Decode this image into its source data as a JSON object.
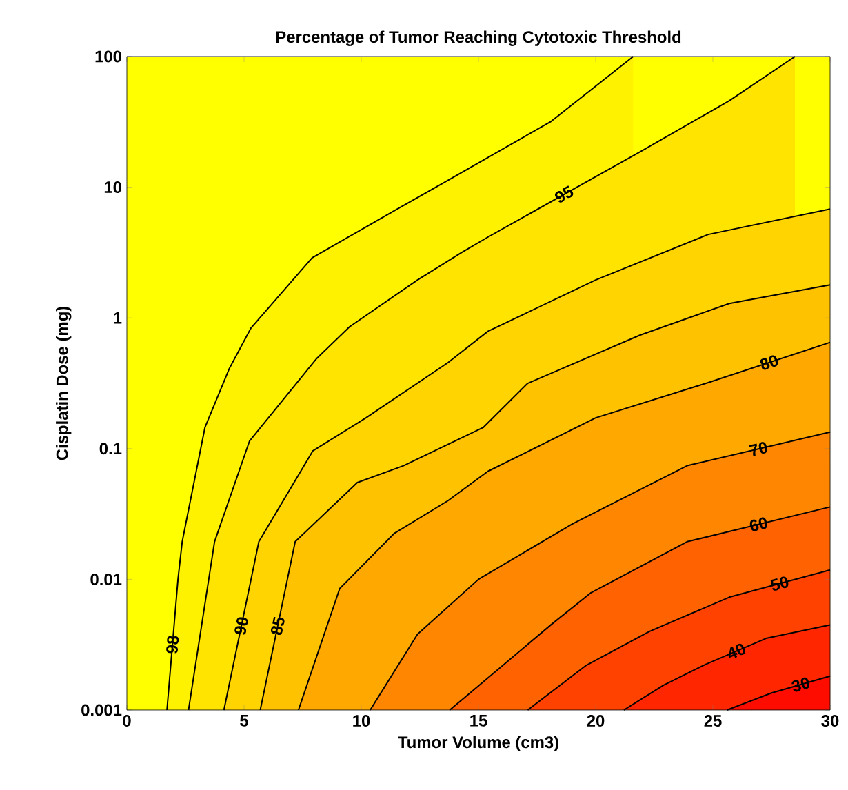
{
  "chart_data": {
    "type": "area",
    "title": "Percentage of Tumor Reaching Cytotoxic Threshold",
    "xlabel": "Tumor Volume (cm3)",
    "ylabel": "Cisplatin Dose (mg)",
    "log": "y",
    "xlim": [
      0,
      30
    ],
    "ylim": [
      0.001,
      100
    ],
    "xticks": [
      0,
      5,
      10,
      15,
      20,
      25,
      30
    ],
    "yticks": [
      0.001,
      0.01,
      0.1,
      1,
      10,
      100
    ],
    "bands": [
      {
        "axis": "y",
        "from": 0.001,
        "to": 100,
        "color": "#ffff00"
      }
    ],
    "series": [
      {
        "name": "98",
        "color": "#fff200",
        "x": [
          1.71,
          2.18,
          2.36,
          3.33,
          4.37,
          5.3,
          7.9,
          11.4,
          14.3,
          18.1,
          21.6
        ],
        "values": [
          0.001,
          0.01,
          0.0194,
          0.145,
          0.41,
          0.84,
          2.88,
          6.6,
          13,
          31.9,
          100
        ]
      },
      {
        "name": "95",
        "color": "#ffe400",
        "x": [
          2.63,
          3.74,
          5.23,
          8.1,
          9.5,
          12.4,
          14.3,
          15.4,
          21.9,
          25.7,
          28.5
        ],
        "values": [
          0.001,
          0.0194,
          0.114,
          0.49,
          0.855,
          1.95,
          3.18,
          4.15,
          18.7,
          45.9,
          100
        ]
      },
      {
        "name": "90",
        "color": "#ffd400",
        "x": [
          4.14,
          5.63,
          7.93,
          10.2,
          13.7,
          15.4,
          20.0,
          24.8,
          30
        ],
        "values": [
          0.001,
          0.0194,
          0.096,
          0.172,
          0.455,
          0.79,
          1.95,
          4.35,
          6.8
        ]
      },
      {
        "name": "85",
        "color": "#ffc200",
        "x": [
          5.69,
          7.18,
          9.83,
          11.8,
          15.2,
          17.1,
          21.9,
          25.7,
          30
        ],
        "values": [
          0.001,
          0.0194,
          0.055,
          0.074,
          0.145,
          0.316,
          0.74,
          1.29,
          1.79
        ]
      },
      {
        "name": "80",
        "color": "#ffa800",
        "x": [
          7.32,
          9.08,
          11.4,
          13.7,
          15.4,
          20,
          24.8,
          30
        ],
        "values": [
          0.001,
          0.0085,
          0.0224,
          0.04,
          0.067,
          0.172,
          0.32,
          0.65
        ]
      },
      {
        "name": "70",
        "color": "#ff8600",
        "x": [
          10.38,
          12.4,
          15.0,
          19.0,
          23.9,
          30
        ],
        "values": [
          0.001,
          0.0038,
          0.01,
          0.0265,
          0.074,
          0.134
        ]
      },
      {
        "name": "60",
        "color": "#ff6200",
        "x": [
          13.77,
          14.3,
          18.1,
          19.8,
          23.9,
          30
        ],
        "values": [
          0.001,
          0.0012,
          0.0045,
          0.0079,
          0.0194,
          0.0358
        ]
      },
      {
        "name": "50",
        "color": "#ff4200",
        "x": [
          17.1,
          19.6,
          22.3,
          25.7,
          30
        ],
        "values": [
          0.001,
          0.0022,
          0.004,
          0.0073,
          0.0118
        ]
      },
      {
        "name": "40",
        "color": "#ff2600",
        "x": [
          21.2,
          22.9,
          24.7,
          27.3,
          30
        ],
        "values": [
          0.001,
          0.00155,
          0.00224,
          0.00355,
          0.00448
        ]
      },
      {
        "name": "30",
        "color": "#ff0c00",
        "x": [
          25.6,
          27.5,
          30
        ],
        "values": [
          0.001,
          0.00135,
          0.00182
        ]
      }
    ]
  }
}
